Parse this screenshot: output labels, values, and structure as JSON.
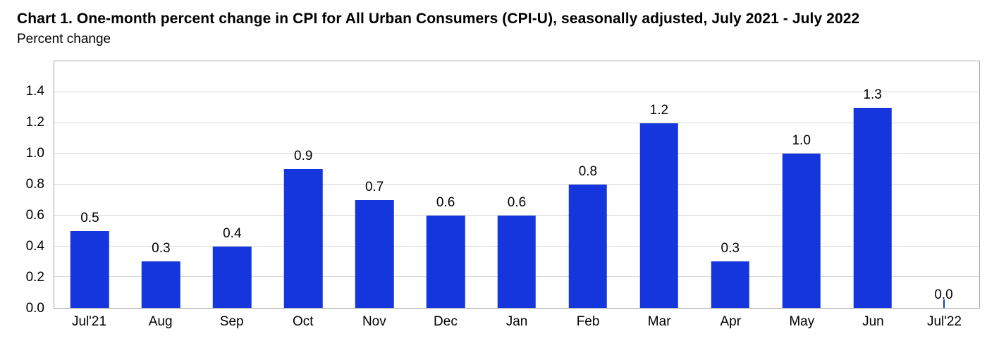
{
  "header": {
    "title": "Chart 1. One-month percent change in CPI for All Urban Consumers (CPI-U), seasonally adjusted, July 2021 - July 2022",
    "subtitle": "Percent change"
  },
  "chart_data": {
    "type": "bar",
    "title": "Chart 1. One-month percent change in CPI for All Urban Consumers (CPI-U), seasonally adjusted, July 2021 - July 2022",
    "xlabel": "",
    "ylabel": "Percent change",
    "categories": [
      "Jul'21",
      "Aug",
      "Sep",
      "Oct",
      "Nov",
      "Dec",
      "Jan",
      "Feb",
      "Mar",
      "Apr",
      "May",
      "Jun",
      "Jul'22"
    ],
    "values": [
      0.5,
      0.3,
      0.4,
      0.9,
      0.7,
      0.6,
      0.6,
      0.8,
      1.2,
      0.3,
      1.0,
      1.3,
      0.0
    ],
    "value_labels": [
      "0.5",
      "0.3",
      "0.4",
      "0.9",
      "0.7",
      "0.6",
      "0.6",
      "0.8",
      "1.2",
      "0.3",
      "1.0",
      "1.3",
      "0.0"
    ],
    "y_ticks": [
      "0.0",
      "0.2",
      "0.4",
      "0.6",
      "0.8",
      "1.0",
      "1.2",
      "1.4"
    ],
    "ylim": [
      0,
      1.6
    ],
    "grid": true,
    "legend": "none",
    "bar_color": "#1535dd",
    "gridline_color": "#d9d9d9",
    "plot_border_color": "#a8a8a8"
  }
}
